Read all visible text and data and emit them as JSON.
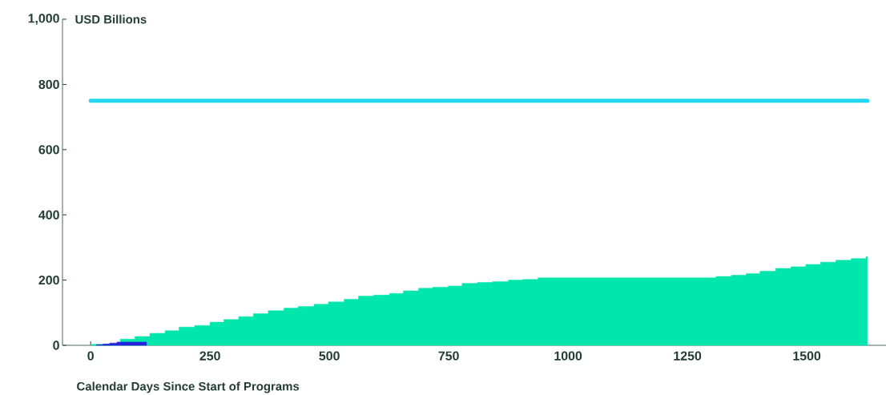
{
  "chart_data": {
    "type": "area",
    "ylabel": "USD Billions",
    "xlabel": "Calendar Days Since Start of Programs",
    "xlim": [
      -59,
      1666
    ],
    "ylim": [
      0,
      1000
    ],
    "xticks": [
      0,
      250,
      500,
      750,
      1000,
      1250,
      1500
    ],
    "yticks": [
      0,
      200,
      400,
      600,
      800,
      {
        "value": 1000,
        "label": "1,000"
      }
    ],
    "grid": false,
    "series": [
      {
        "color": "#00e6ac",
        "x": [
          0,
          62,
          62,
          93,
          93,
          124,
          124,
          156,
          156,
          185,
          185,
          218,
          218,
          250,
          250,
          279,
          279,
          310,
          310,
          341,
          341,
          372,
          372,
          405,
          405,
          435,
          435,
          468,
          468,
          498,
          498,
          531,
          531,
          561,
          561,
          593,
          593,
          626,
          626,
          655,
          655,
          687,
          687,
          716,
          716,
          749,
          749,
          778,
          778,
          810,
          810,
          842,
          842,
          875,
          875,
          905,
          905,
          937,
          937,
          1310,
          1310,
          1342,
          1342,
          1373,
          1373,
          1402,
          1402,
          1435,
          1435,
          1467,
          1467,
          1498,
          1498,
          1529,
          1529,
          1561,
          1561,
          1593,
          1593,
          1624,
          1624,
          1627
        ],
        "values": [
          3,
          3,
          19,
          19,
          27,
          27,
          37,
          37,
          45,
          45,
          56,
          56,
          61,
          61,
          71,
          71,
          79,
          79,
          88,
          88,
          97,
          97,
          106,
          106,
          114,
          114,
          119,
          119,
          126,
          126,
          133,
          133,
          141,
          141,
          151,
          151,
          154,
          154,
          159,
          159,
          167,
          167,
          175,
          175,
          178,
          178,
          182,
          182,
          190,
          190,
          193,
          193,
          195,
          195,
          200,
          200,
          202,
          202,
          207,
          207,
          211,
          211,
          215,
          215,
          220,
          220,
          227,
          227,
          236,
          236,
          241,
          241,
          248,
          248,
          255,
          255,
          261,
          261,
          266,
          266,
          272,
          272
        ]
      },
      {
        "color": "#2323e0",
        "x": [
          12,
          26,
          26,
          40,
          40,
          55,
          55,
          117
        ],
        "values": [
          2,
          2,
          4,
          4,
          7,
          7,
          10,
          10
        ]
      },
      {
        "type": "line",
        "color": "#22d8f0",
        "x": [
          0,
          1627
        ],
        "values": [
          750,
          750
        ]
      }
    ]
  }
}
